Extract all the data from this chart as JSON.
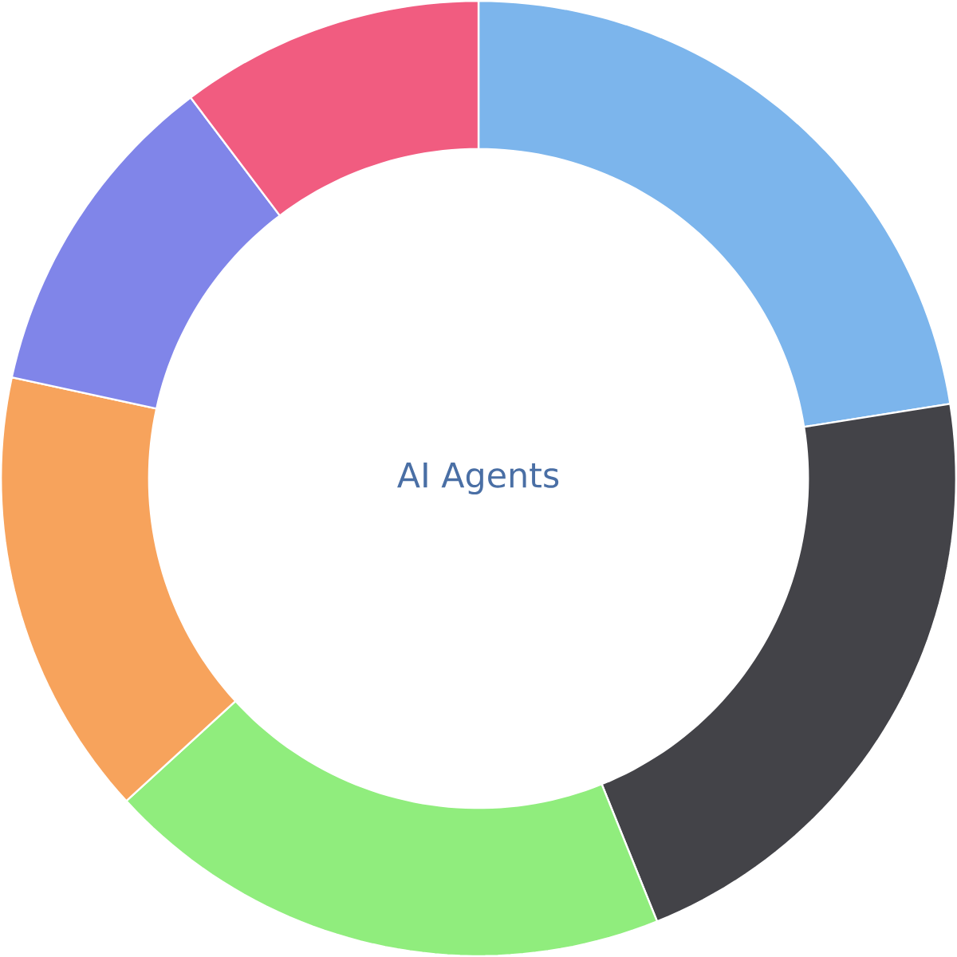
{
  "chart_data": {
    "type": "donut",
    "title": "AI Agents",
    "categories": [
      null,
      null,
      null,
      null,
      null,
      null
    ],
    "values": [
      22.5,
      21.4,
      19.3,
      15.2,
      11.3,
      10.3
    ],
    "colors": [
      "#7cb5ec",
      "#434348",
      "#90ed7d",
      "#f7a35c",
      "#8085e9",
      "#f15c80"
    ]
  }
}
